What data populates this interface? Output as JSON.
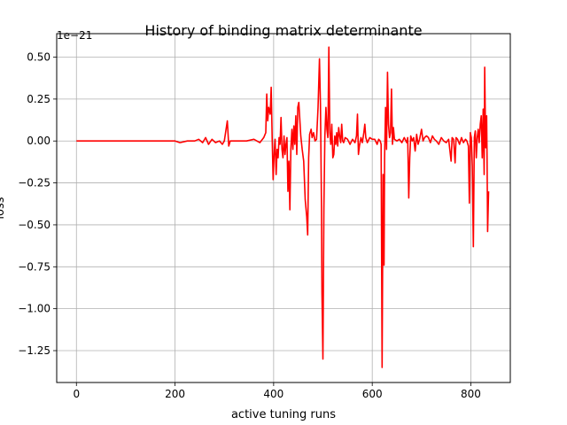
{
  "chart_data": {
    "type": "line",
    "title": "History of binding matrix determinante",
    "xlabel": "active tuning runs",
    "ylabel": "loss",
    "offset_text": "1e−21",
    "xlim": [
      -40,
      880
    ],
    "ylim": [
      -1.44,
      0.64
    ],
    "x_ticks": [
      0,
      200,
      400,
      600,
      800
    ],
    "y_ticks": [
      -1.25,
      -1.0,
      -0.75,
      -0.5,
      -0.25,
      0.0,
      0.25,
      0.5
    ],
    "x_tick_labels": [
      "0",
      "200",
      "400",
      "600",
      "800"
    ],
    "y_tick_labels": [
      "−1.25",
      "−1.00",
      "−0.75",
      "−0.50",
      "−0.25",
      "0.00",
      "0.25",
      "0.50"
    ],
    "grid": true,
    "line_color": "#ff0000",
    "series": [
      {
        "points": [
          [
            0,
            0
          ],
          [
            200,
            0
          ],
          [
            210,
            -0.01
          ],
          [
            225,
            0
          ],
          [
            240,
            0
          ],
          [
            248,
            0.01
          ],
          [
            256,
            -0.01
          ],
          [
            262,
            0.02
          ],
          [
            268,
            -0.02
          ],
          [
            275,
            0.01
          ],
          [
            282,
            -0.01
          ],
          [
            290,
            0
          ],
          [
            296,
            -0.02
          ],
          [
            300,
            0
          ],
          [
            303,
            0.06
          ],
          [
            306,
            0.12
          ],
          [
            309,
            -0.03
          ],
          [
            312,
            0
          ],
          [
            330,
            0
          ],
          [
            345,
            0
          ],
          [
            360,
            0.01
          ],
          [
            372,
            -0.01
          ],
          [
            380,
            0.02
          ],
          [
            384,
            0.05
          ],
          [
            386,
            0.28
          ],
          [
            388,
            0.12
          ],
          [
            390,
            0.2
          ],
          [
            393,
            0.16
          ],
          [
            395,
            0.32
          ],
          [
            397,
            0.02
          ],
          [
            399,
            -0.23
          ],
          [
            401,
            -0.08
          ],
          [
            403,
            0.01
          ],
          [
            405,
            -0.2
          ],
          [
            407,
            -0.05
          ],
          [
            409,
            -0.1
          ],
          [
            411,
            0.02
          ],
          [
            413,
            -0.02
          ],
          [
            415,
            0.14
          ],
          [
            417,
            -0.05
          ],
          [
            419,
            -0.1
          ],
          [
            421,
            0.03
          ],
          [
            423,
            -0.08
          ],
          [
            425,
            -0.02
          ],
          [
            427,
            0.02
          ],
          [
            429,
            -0.3
          ],
          [
            431,
            -0.12
          ],
          [
            433,
            -0.41
          ],
          [
            435,
            -0.05
          ],
          [
            437,
            0.07
          ],
          [
            439,
            -0.05
          ],
          [
            441,
            0.09
          ],
          [
            443,
            -0.02
          ],
          [
            445,
            0.15
          ],
          [
            447,
            -0.08
          ],
          [
            449,
            0.2
          ],
          [
            451,
            0.23
          ],
          [
            453,
            0.13
          ],
          [
            455,
            0.03
          ],
          [
            458,
            -0.05
          ],
          [
            461,
            -0.12
          ],
          [
            464,
            -0.35
          ],
          [
            467,
            -0.45
          ],
          [
            469,
            -0.56
          ],
          [
            471,
            -0.1
          ],
          [
            473,
            0.04
          ],
          [
            476,
            0.07
          ],
          [
            478,
            0.02
          ],
          [
            481,
            0.05
          ],
          [
            484,
            0
          ],
          [
            487,
            0.01
          ],
          [
            490,
            0.2
          ],
          [
            493,
            0.49
          ],
          [
            495,
            0.22
          ],
          [
            497,
            -0.4
          ],
          [
            498,
            -0.9
          ],
          [
            500,
            -1.3
          ],
          [
            502,
            -0.4
          ],
          [
            504,
            0.03
          ],
          [
            506,
            0.2
          ],
          [
            508,
            0.07
          ],
          [
            510,
            0.02
          ],
          [
            512,
            0.56
          ],
          [
            514,
            0.05
          ],
          [
            516,
            -0.02
          ],
          [
            518,
            0.1
          ],
          [
            520,
            -0.1
          ],
          [
            522,
            -0.08
          ],
          [
            524,
            0.03
          ],
          [
            526,
            -0.02
          ],
          [
            528,
            0.05
          ],
          [
            530,
            -0.03
          ],
          [
            532,
            0.08
          ],
          [
            534,
            0.03
          ],
          [
            536,
            -0.01
          ],
          [
            538,
            0.1
          ],
          [
            540,
            0
          ],
          [
            542,
            -0.01
          ],
          [
            545,
            0.02
          ],
          [
            550,
            0.01
          ],
          [
            555,
            -0.02
          ],
          [
            560,
            0.01
          ],
          [
            565,
            -0.01
          ],
          [
            568,
            0.03
          ],
          [
            570,
            0.16
          ],
          [
            572,
            -0.08
          ],
          [
            574,
            -0.03
          ],
          [
            577,
            0.02
          ],
          [
            580,
            -0.01
          ],
          [
            583,
            0.05
          ],
          [
            585,
            0.1
          ],
          [
            587,
            0.02
          ],
          [
            590,
            -0.01
          ],
          [
            595,
            0.02
          ],
          [
            600,
            0.01
          ],
          [
            605,
            0.01
          ],
          [
            610,
            -0.02
          ],
          [
            613,
            0.01
          ],
          [
            616,
            0
          ],
          [
            618,
            -0.02
          ],
          [
            620,
            -1.35
          ],
          [
            622,
            -0.2
          ],
          [
            624,
            -0.74
          ],
          [
            625,
            -0.1
          ],
          [
            627,
            0.2
          ],
          [
            629,
            -0.05
          ],
          [
            631,
            0.41
          ],
          [
            633,
            0.1
          ],
          [
            635,
            0.02
          ],
          [
            637,
            0.05
          ],
          [
            639,
            0.31
          ],
          [
            641,
            -0.02
          ],
          [
            643,
            0.08
          ],
          [
            645,
            0.01
          ],
          [
            650,
            0
          ],
          [
            655,
            0.01
          ],
          [
            660,
            -0.01
          ],
          [
            665,
            0.02
          ],
          [
            670,
            -0.01
          ],
          [
            672,
            0.02
          ],
          [
            674,
            -0.34
          ],
          [
            676,
            -0.1
          ],
          [
            678,
            0.03
          ],
          [
            681,
            0
          ],
          [
            684,
            0.02
          ],
          [
            687,
            -0.06
          ],
          [
            690,
            0.04
          ],
          [
            693,
            -0.02
          ],
          [
            696,
            0.01
          ],
          [
            700,
            0.07
          ],
          [
            703,
            0
          ],
          [
            706,
            0.02
          ],
          [
            710,
            0.03
          ],
          [
            714,
            0.02
          ],
          [
            718,
            -0.01
          ],
          [
            722,
            0.03
          ],
          [
            726,
            0.01
          ],
          [
            730,
            0
          ],
          [
            735,
            -0.02
          ],
          [
            740,
            0.02
          ],
          [
            745,
            0
          ],
          [
            750,
            -0.01
          ],
          [
            755,
            0.01
          ],
          [
            760,
            -0.12
          ],
          [
            762,
            0.02
          ],
          [
            765,
            0.01
          ],
          [
            768,
            -0.13
          ],
          [
            770,
            0.02
          ],
          [
            773,
            0.01
          ],
          [
            777,
            -0.02
          ],
          [
            781,
            0.02
          ],
          [
            785,
            -0.01
          ],
          [
            789,
            0.01
          ],
          [
            792,
            0
          ],
          [
            795,
            -0.03
          ],
          [
            797,
            -0.37
          ],
          [
            799,
            0.05
          ],
          [
            801,
            0.02
          ],
          [
            803,
            -0.15
          ],
          [
            805,
            -0.63
          ],
          [
            807,
            0.02
          ],
          [
            809,
            0.06
          ],
          [
            811,
            -0.1
          ],
          [
            813,
            0.02
          ],
          [
            815,
            0.07
          ],
          [
            817,
            -0.01
          ],
          [
            819,
            0.1
          ],
          [
            821,
            0.15
          ],
          [
            823,
            -0.1
          ],
          [
            825,
            0.19
          ],
          [
            827,
            -0.2
          ],
          [
            828,
            0.44
          ],
          [
            830,
            -0.04
          ],
          [
            832,
            0.15
          ],
          [
            833,
            -0.12
          ],
          [
            834,
            -0.54
          ],
          [
            836,
            -0.3
          ]
        ]
      }
    ]
  }
}
